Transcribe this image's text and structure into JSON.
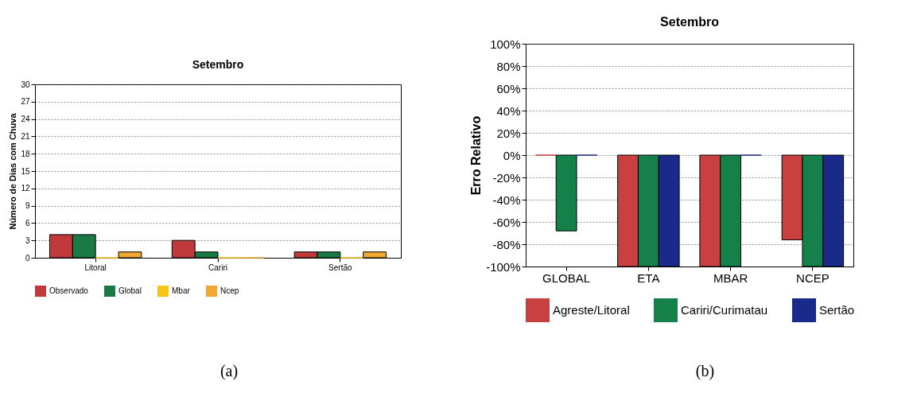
{
  "chart_data": [
    {
      "type": "bar",
      "title": "Setembro",
      "ylabel": "Número de Dias com Chuva",
      "categories": [
        "Litoral",
        "Cariri",
        "Sertão"
      ],
      "series": [
        {
          "name": "Observado",
          "color": "#c0393b",
          "values": [
            4,
            3,
            1
          ]
        },
        {
          "name": "Global",
          "color": "#1a7a45",
          "values": [
            4,
            1,
            1
          ]
        },
        {
          "name": "Mbar",
          "color": "#f5c518",
          "values": [
            0,
            0,
            0
          ]
        },
        {
          "name": "Ncep",
          "color": "#f0a830",
          "values": [
            1,
            0,
            1
          ]
        }
      ],
      "ylim": [
        0,
        30
      ],
      "yticks": [
        0,
        3,
        6,
        9,
        12,
        15,
        18,
        21,
        24,
        27,
        30
      ],
      "grid": "y",
      "legend": "bottom",
      "annotations": [
        "(a)"
      ]
    },
    {
      "type": "bar",
      "title": "Setembro",
      "ylabel": "Erro Relativo",
      "categories": [
        "GLOBAL",
        "ETA",
        "MBAR",
        "NCEP"
      ],
      "series": [
        {
          "name": "Agreste/Litoral",
          "color": "#c94040",
          "values": [
            0,
            -100,
            -100,
            -76
          ]
        },
        {
          "name": "Cariri/Curimatau",
          "color": "#15804a",
          "values": [
            -68,
            -100,
            -100,
            -100
          ]
        },
        {
          "name": "Sertão",
          "color": "#1a2a8a",
          "values": [
            0,
            -100,
            0,
            -100
          ]
        }
      ],
      "ylim": [
        -100,
        100
      ],
      "yticks": [
        {
          "value": -100,
          "label": "-100%"
        },
        {
          "value": -80,
          "label": "-80%"
        },
        {
          "value": -60,
          "label": "-60%"
        },
        {
          "value": -40,
          "label": "-40%"
        },
        {
          "value": -20,
          "label": "-20%"
        },
        {
          "value": 0,
          "label": "0%"
        },
        {
          "value": 20,
          "label": "20%"
        },
        {
          "value": 40,
          "label": "40%"
        },
        {
          "value": 60,
          "label": "60%"
        },
        {
          "value": 80,
          "label": "80%"
        },
        {
          "value": 100,
          "label": "100%"
        }
      ],
      "grid": "y",
      "legend": "bottom",
      "annotations": [
        "(b)"
      ]
    }
  ]
}
